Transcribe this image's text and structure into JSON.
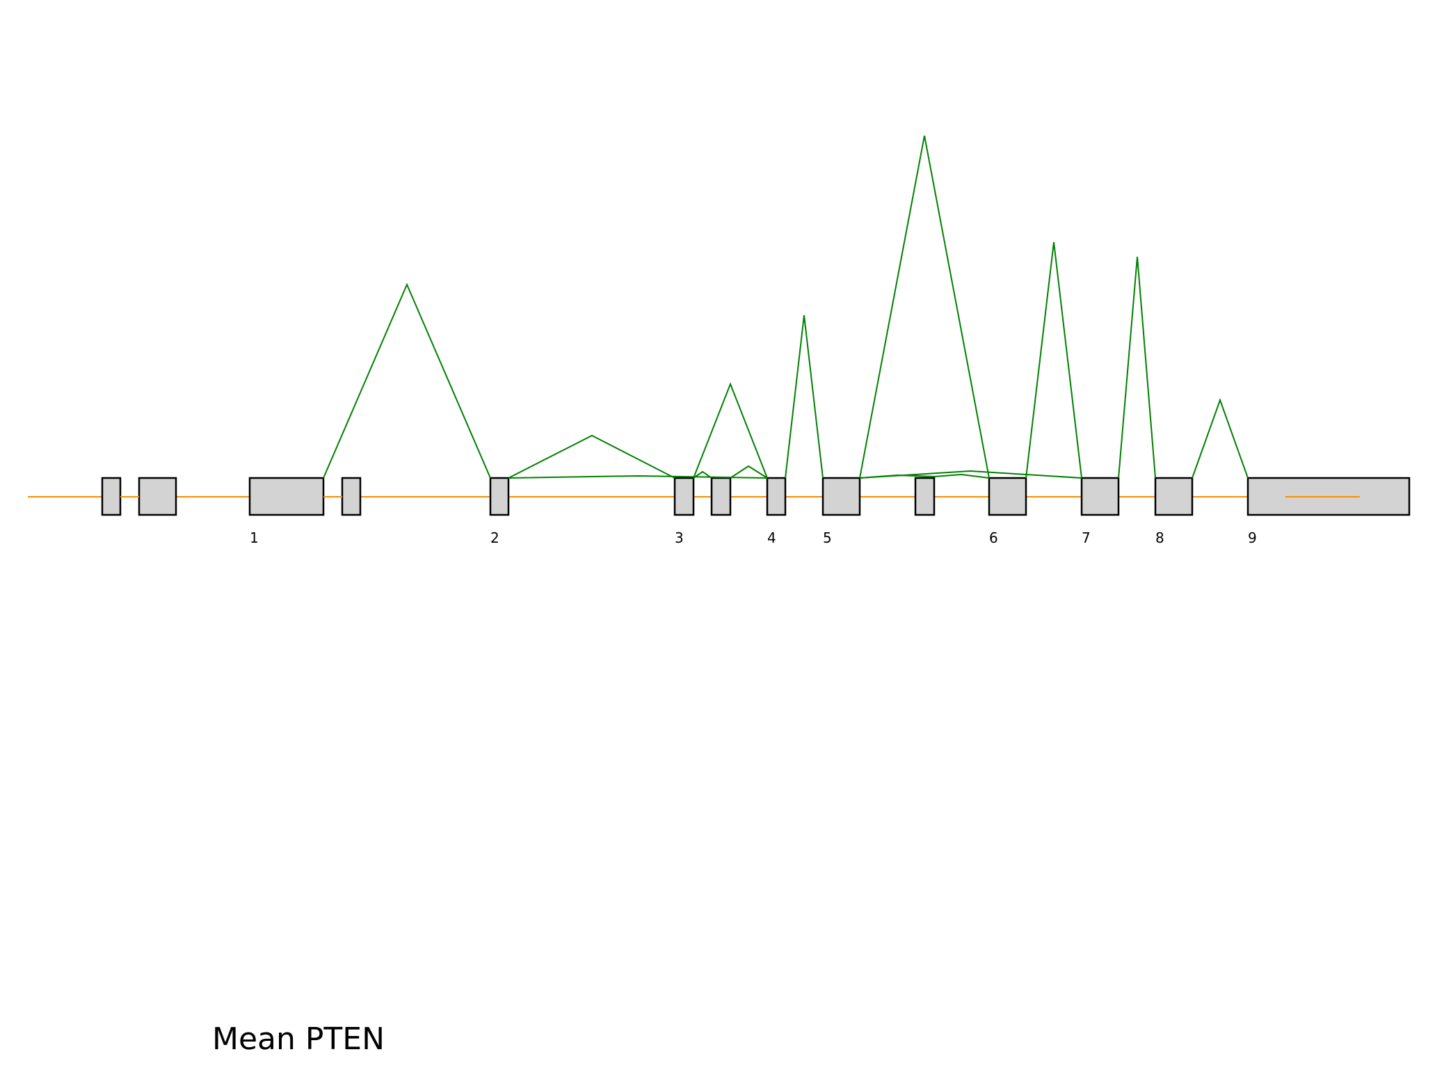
{
  "caption": "Mean PTEN",
  "exon_labels": [
    "1",
    "2",
    "3",
    "4",
    "5",
    "6",
    "7",
    "8",
    "9"
  ],
  "colors": {
    "intron": "#ff8c00",
    "junction": "#008000",
    "exon_fill": "#d3d3d3",
    "exon_stroke": "#000000"
  }
}
